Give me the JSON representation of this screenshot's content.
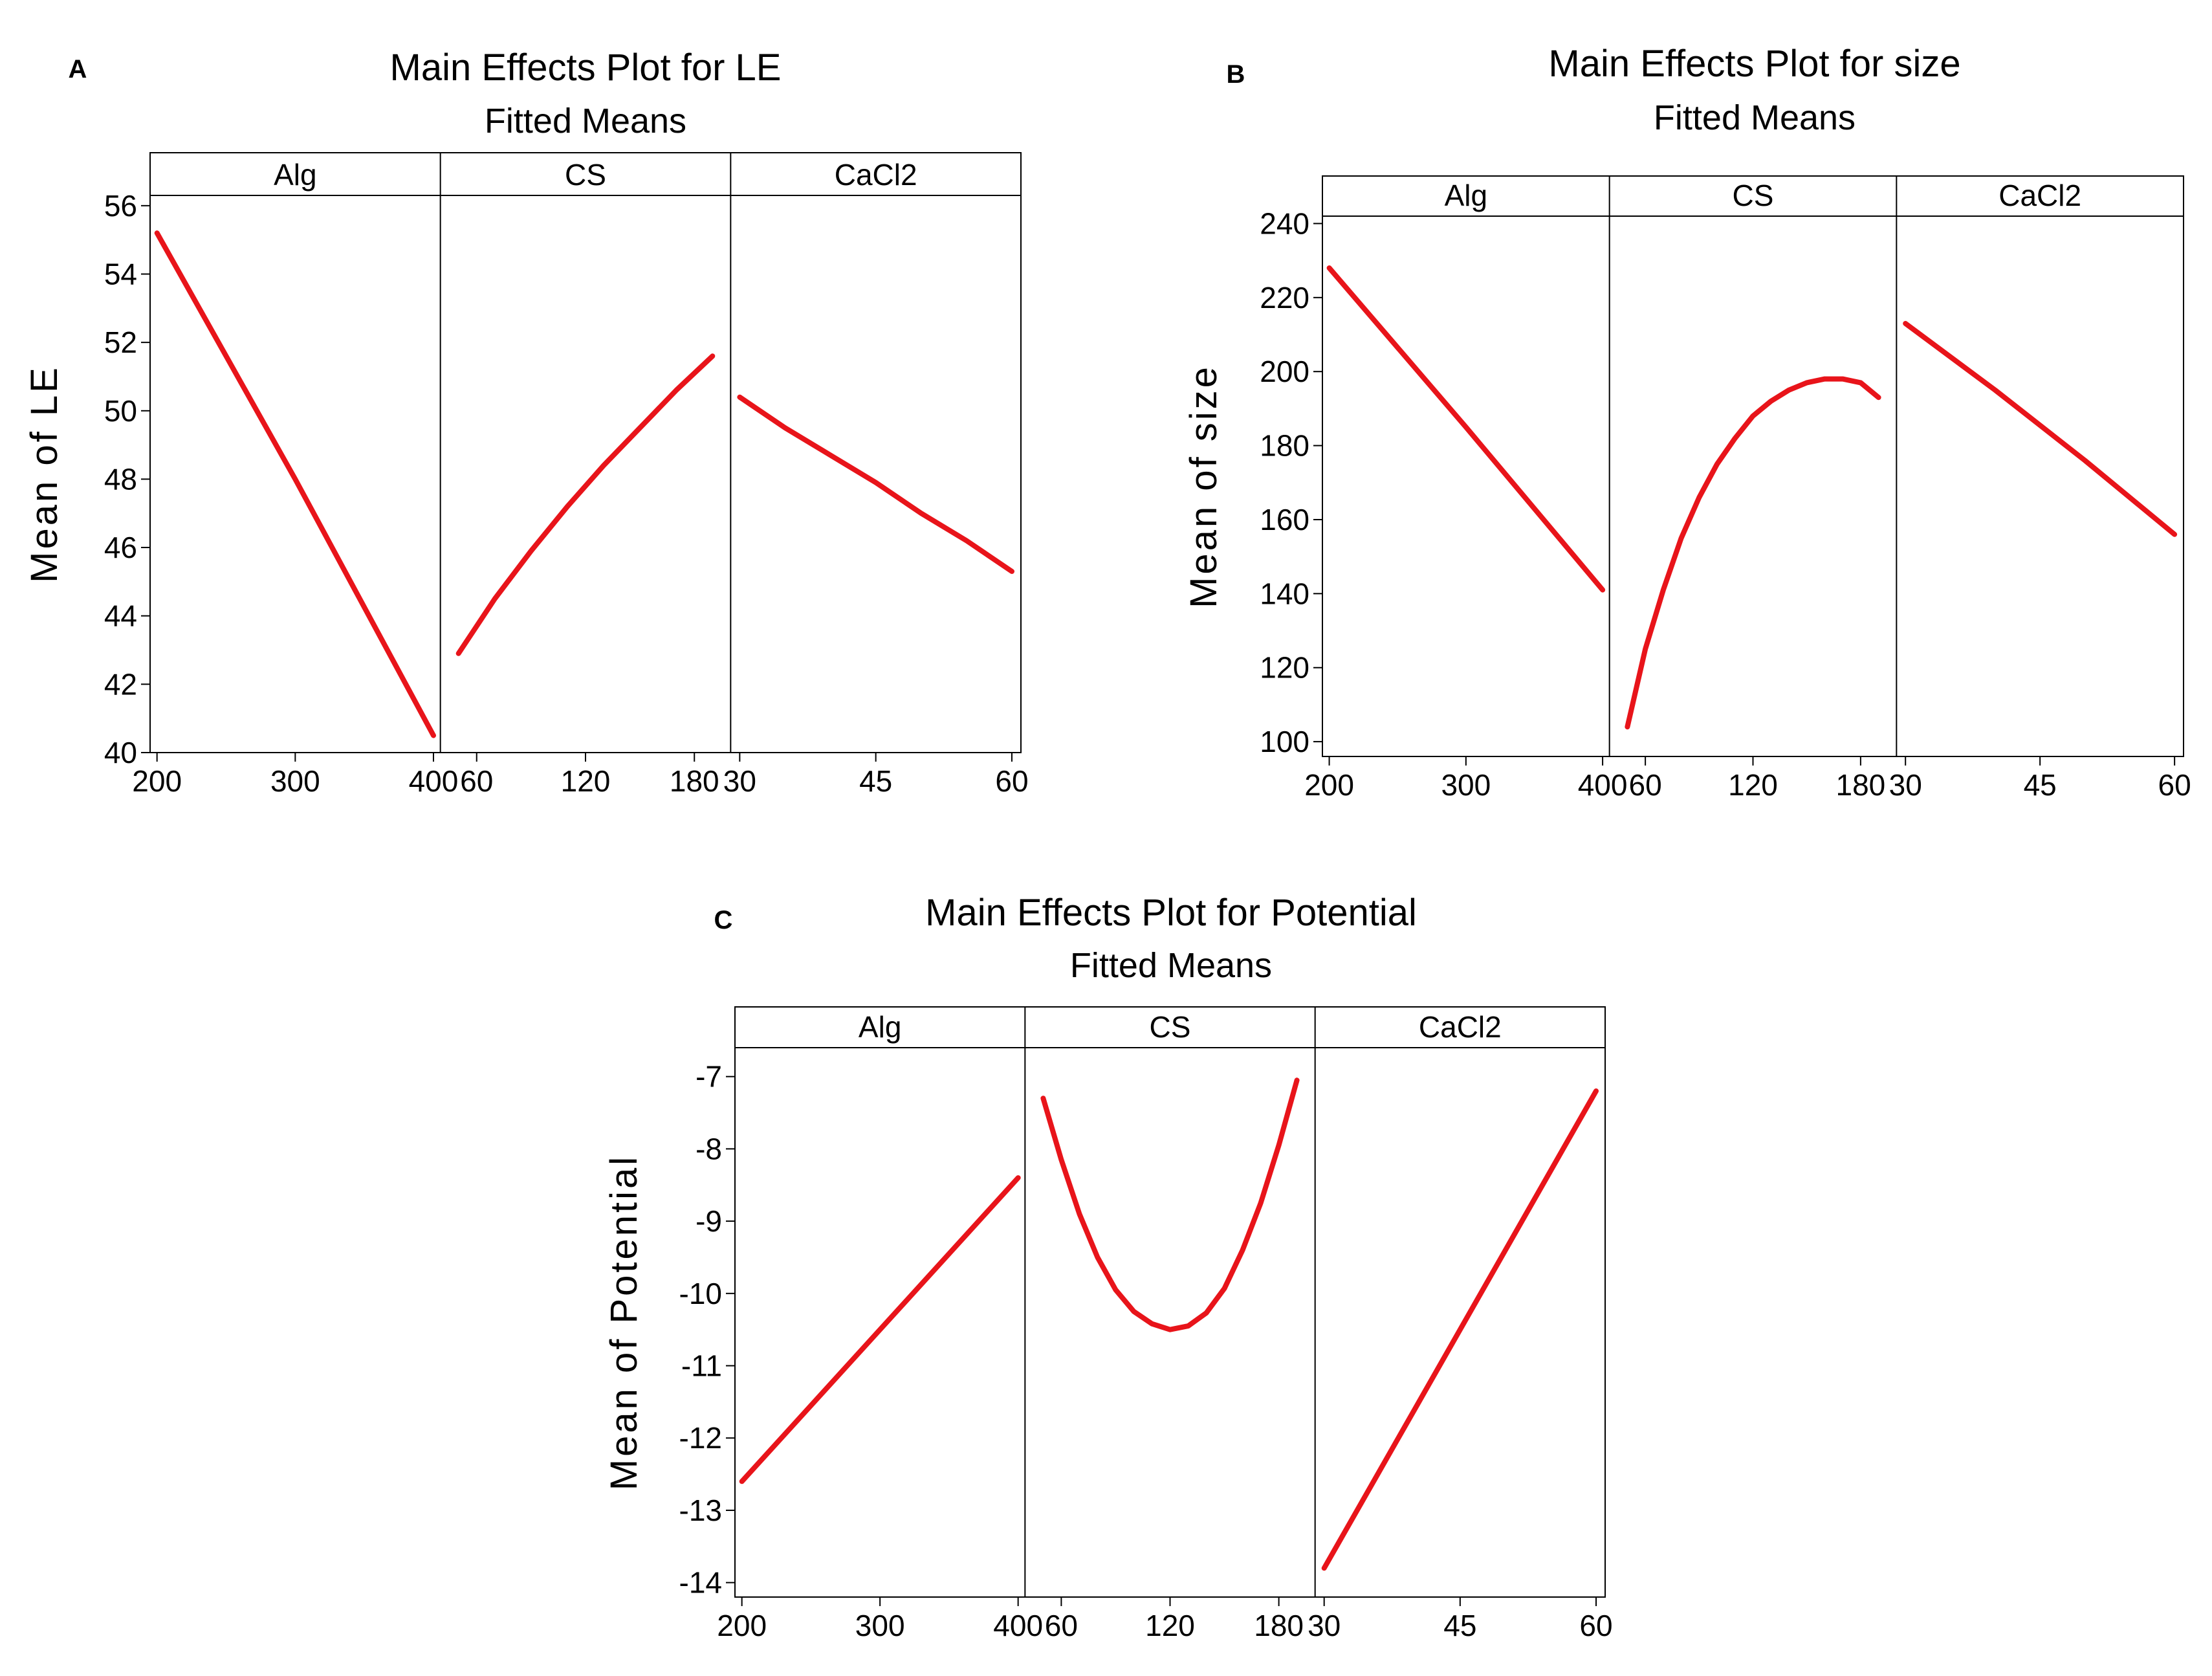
{
  "figure": {
    "colors": {
      "line": "#e8141a",
      "frame": "#000000",
      "background": "#ffffff"
    }
  },
  "chart_data": [
    {
      "type": "line",
      "panel_label": "A",
      "title": "Main Effects Plot for LE",
      "subtitle": "Fitted Means",
      "ylabel": "Mean of LE",
      "ylim": [
        40,
        56.3
      ],
      "yticks": [
        40,
        42,
        44,
        46,
        48,
        50,
        52,
        54,
        56
      ],
      "facets": [
        {
          "label": "Alg",
          "xlim": [
            195,
            405
          ],
          "xticks": [
            200,
            300,
            400
          ],
          "series": [
            {
              "name": "Alg",
              "x": [
                200,
                300,
                400
              ],
              "y": [
                55.2,
                48.0,
                40.5
              ]
            }
          ]
        },
        {
          "label": "CS",
          "xlim": [
            40,
            200
          ],
          "xticks": [
            60,
            120,
            180
          ],
          "series": [
            {
              "name": "CS",
              "x": [
                50,
                70,
                90,
                110,
                130,
                150,
                170,
                190
              ],
              "y": [
                42.9,
                44.5,
                45.9,
                47.2,
                48.4,
                49.5,
                50.6,
                51.6
              ]
            }
          ]
        },
        {
          "label": "CaCl2",
          "xlim": [
            29,
            61
          ],
          "xticks": [
            30,
            45,
            60
          ],
          "series": [
            {
              "name": "CaCl2",
              "x": [
                30,
                35,
                40,
                45,
                50,
                55,
                60
              ],
              "y": [
                50.4,
                49.5,
                48.7,
                47.9,
                47.0,
                46.2,
                45.3
              ]
            }
          ]
        }
      ]
    },
    {
      "type": "line",
      "panel_label": "B",
      "title": "Main Effects Plot for size",
      "subtitle": "Fitted Means",
      "ylabel": "Mean of size",
      "ylim": [
        96,
        242
      ],
      "yticks": [
        100,
        120,
        140,
        160,
        180,
        200,
        220,
        240
      ],
      "facets": [
        {
          "label": "Alg",
          "xlim": [
            195,
            405
          ],
          "xticks": [
            200,
            300,
            400
          ],
          "series": [
            {
              "name": "Alg",
              "x": [
                200,
                300,
                400
              ],
              "y": [
                228,
                185,
                141
              ]
            }
          ]
        },
        {
          "label": "CS",
          "xlim": [
            40,
            200
          ],
          "xticks": [
            60,
            120,
            180
          ],
          "series": [
            {
              "name": "CS",
              "x": [
                50,
                60,
                70,
                80,
                90,
                100,
                110,
                120,
                130,
                140,
                150,
                160,
                170,
                180,
                190
              ],
              "y": [
                104,
                125,
                141,
                155,
                166,
                175,
                182,
                188,
                192,
                195,
                197,
                198,
                198,
                197,
                193
              ]
            }
          ]
        },
        {
          "label": "CaCl2",
          "xlim": [
            29,
            61
          ],
          "xticks": [
            30,
            45,
            60
          ],
          "series": [
            {
              "name": "CaCl2",
              "x": [
                30,
                40,
                50,
                60
              ],
              "y": [
                213,
                195,
                176,
                156
              ]
            }
          ]
        }
      ]
    },
    {
      "type": "line",
      "panel_label": "C",
      "title": "Main Effects Plot for Potential",
      "subtitle": "Fitted Means",
      "ylabel": "Mean of Potential",
      "ylim": [
        -14.2,
        -6.6
      ],
      "yticks": [
        -14,
        -13,
        -12,
        -11,
        -10,
        -9,
        -8,
        -7
      ],
      "facets": [
        {
          "label": "Alg",
          "xlim": [
            195,
            405
          ],
          "xticks": [
            200,
            300,
            400
          ],
          "series": [
            {
              "name": "Alg",
              "x": [
                200,
                300,
                400
              ],
              "y": [
                -12.6,
                -10.5,
                -8.4
              ]
            }
          ]
        },
        {
          "label": "CS",
          "xlim": [
            40,
            200
          ],
          "xticks": [
            60,
            120,
            180
          ],
          "series": [
            {
              "name": "CS",
              "x": [
                50,
                60,
                70,
                80,
                90,
                100,
                110,
                120,
                130,
                140,
                150,
                160,
                170,
                180,
                190
              ],
              "y": [
                -7.3,
                -8.15,
                -8.9,
                -9.5,
                -9.95,
                -10.25,
                -10.42,
                -10.5,
                -10.45,
                -10.27,
                -9.93,
                -9.4,
                -8.75,
                -7.95,
                -7.05
              ]
            }
          ]
        },
        {
          "label": "CaCl2",
          "xlim": [
            29,
            61
          ],
          "xticks": [
            30,
            45,
            60
          ],
          "series": [
            {
              "name": "CaCl2",
              "x": [
                30,
                40,
                50,
                60
              ],
              "y": [
                -13.8,
                -11.6,
                -9.4,
                -7.2
              ]
            }
          ]
        }
      ]
    }
  ]
}
